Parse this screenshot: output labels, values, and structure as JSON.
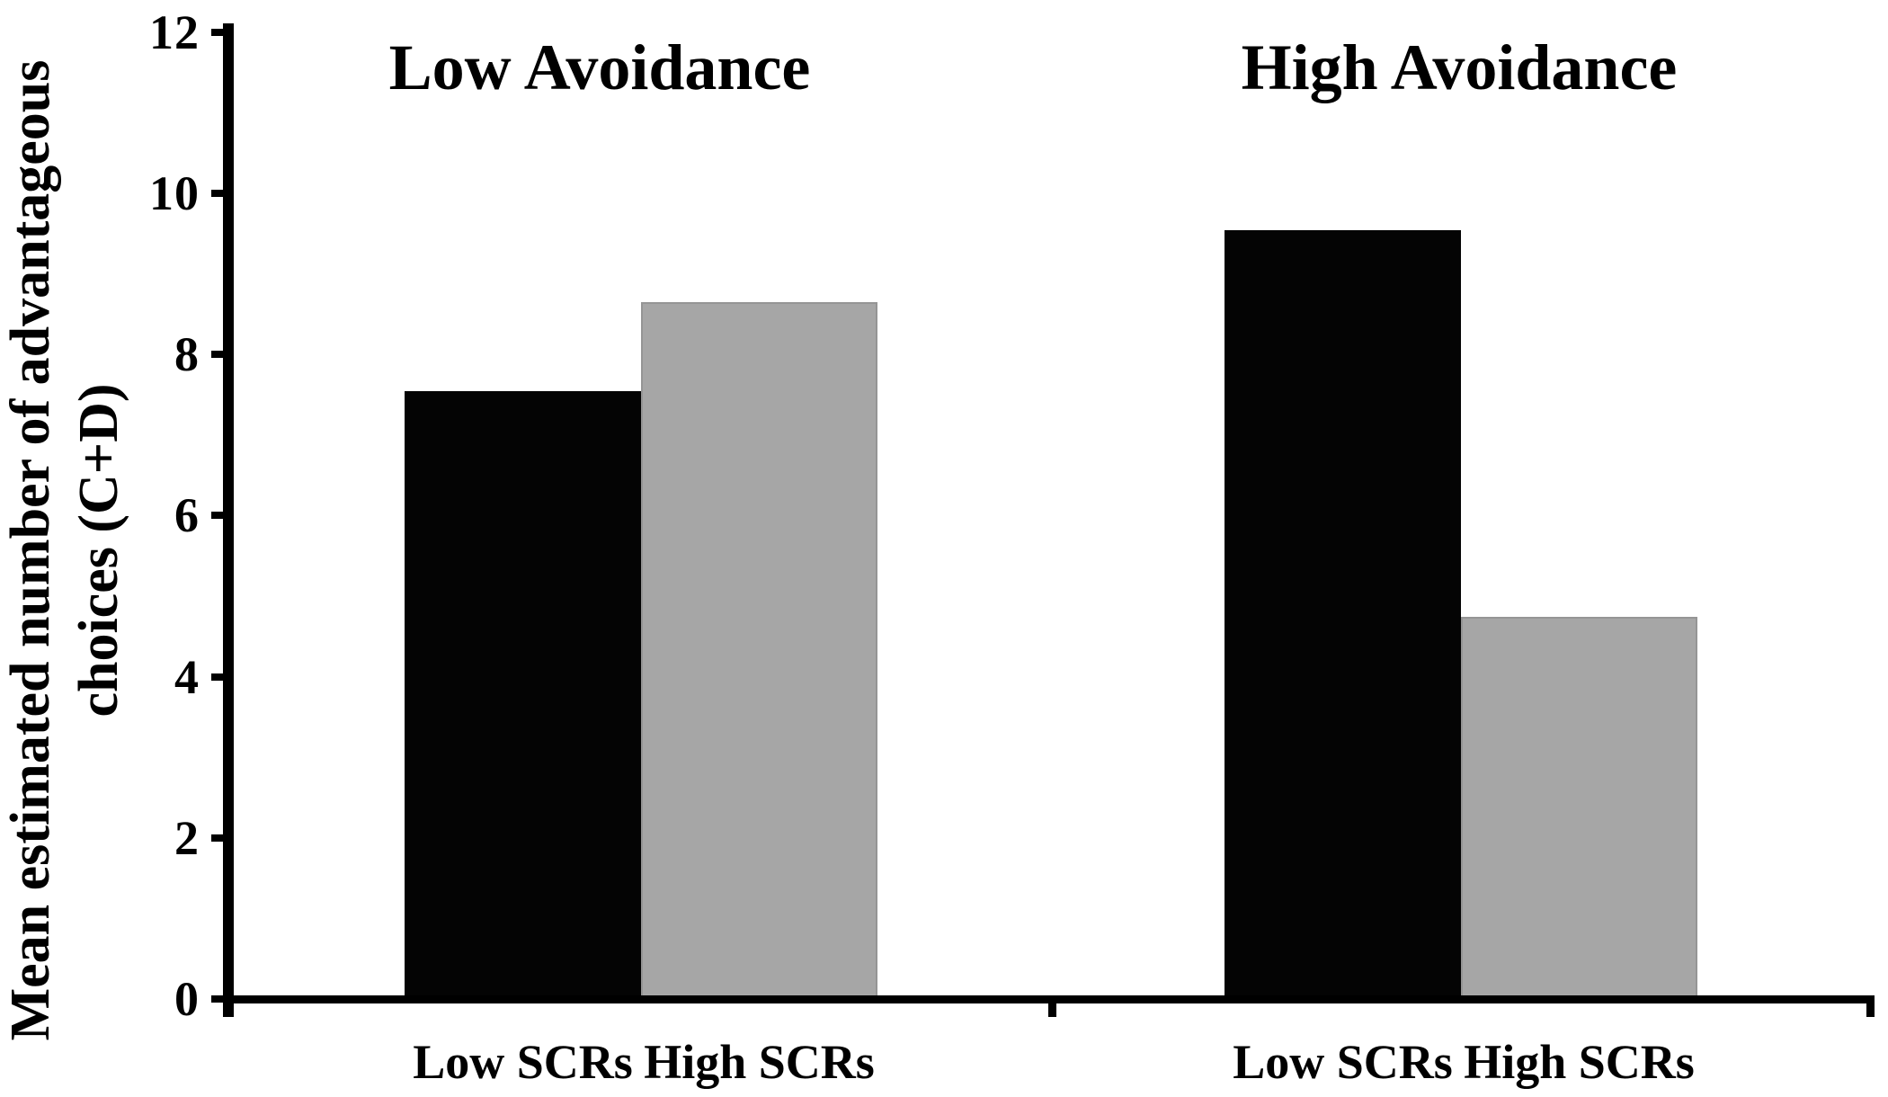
{
  "figure": {
    "background": "#ffffff",
    "text_color": "#000000"
  },
  "chart_data": {
    "type": "bar",
    "title": "",
    "categories": [
      "Low Avoidance",
      "High Avoidance"
    ],
    "series": [
      {
        "name": "Low SCRs",
        "color": "#040404",
        "values": [
          7.5,
          9.5
        ]
      },
      {
        "name": "High SCRs",
        "color": "#a6a6a6",
        "values": [
          8.6,
          4.7
        ]
      }
    ],
    "bar_labels_per_group": [
      "Low SCRs",
      "High SCRs"
    ],
    "ylabel": "Mean estimated number of advantageous choices (C+D)",
    "ylabel_lines": [
      "Mean estimated number of advantageous",
      "choices (C+D)"
    ],
    "xlabel": "",
    "ylim": [
      0,
      12
    ],
    "yticks": [
      "0",
      "2",
      "4",
      "6",
      "8",
      "10",
      "12"
    ],
    "grid": false,
    "legend": null,
    "colors": {
      "black_bar": "#040404",
      "gray_bar": "#a6a6a6",
      "gray_bar_border": "#959595",
      "axis": "#000000",
      "background": "#ffffff"
    }
  }
}
